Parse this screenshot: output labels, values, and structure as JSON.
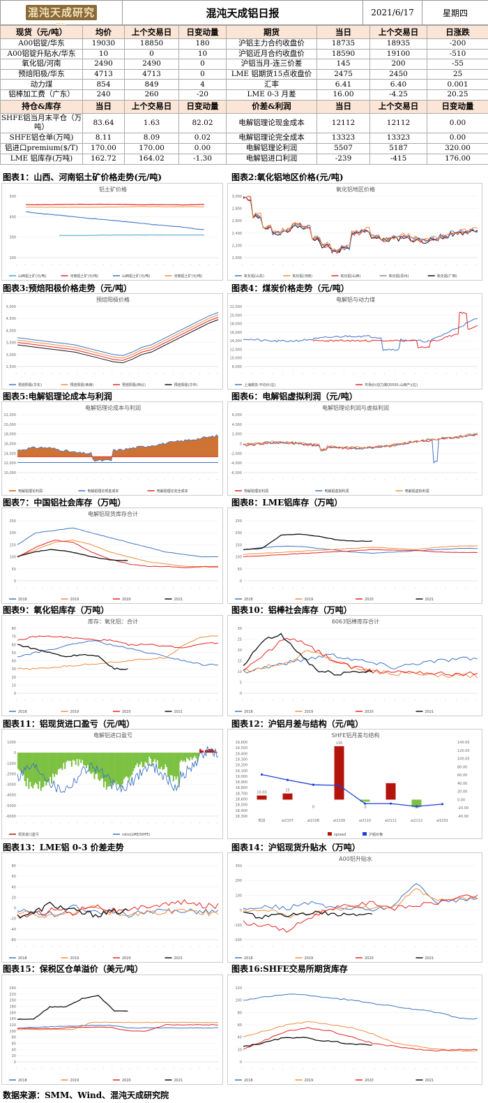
{
  "header": {
    "logo_text": "混沌天成研究院",
    "title": "混沌天成铝日报",
    "date": "2021/6/17",
    "weekday": "星期四"
  },
  "spot_table": {
    "headers_left": [
      "现货（元/吨）",
      "均价",
      "上个交易日",
      "日变动量"
    ],
    "headers_right": [
      "期货",
      "当日",
      "上个交易日",
      "日涨跌"
    ],
    "rows": [
      {
        "l": [
          "A00铝锭/华东",
          "19030",
          "18850",
          "180"
        ],
        "r": [
          "沪铝主力合约收盘价",
          "18735",
          "18935",
          "-200"
        ]
      },
      {
        "l": [
          "A00铝锭升贴水/华东",
          "10",
          "0",
          "10"
        ],
        "r": [
          "沪铝近月合约收盘价",
          "18590",
          "19100",
          "-510"
        ]
      },
      {
        "l": [
          "氧化铝/河南",
          "2490",
          "2490",
          "0"
        ],
        "r": [
          "沪铝当月-连三价差",
          "145",
          "200",
          "-55"
        ]
      },
      {
        "l": [
          "预焙阳极/华东",
          "4713",
          "4713",
          "0"
        ],
        "r": [
          "LME 铝期货15点收盘价",
          "2475",
          "2450",
          "25"
        ]
      },
      {
        "l": [
          "动力煤",
          "854",
          "849",
          "4"
        ],
        "r": [
          "汇率",
          "6.41",
          "6.40",
          "0.001"
        ]
      },
      {
        "l": [
          "铝棒加工费（广东）",
          "240",
          "260",
          "-20"
        ],
        "r": [
          "LME 0-3 月差",
          "16.00",
          "-4.25",
          "20.25"
        ]
      }
    ]
  },
  "inv_table": {
    "headers_left": [
      "持仓&库存",
      "当日",
      "上个交易日",
      "日变动量"
    ],
    "headers_right": [
      "价差&利润",
      "当日",
      "上个交易日",
      "日变动量"
    ],
    "rows": [
      {
        "l": [
          "SHFE铝当月末平仓（万吨）",
          "83.64",
          "1.63",
          "82.02"
        ],
        "r": [
          "电解铝理论现金成本",
          "12112",
          "12112",
          "0.00"
        ]
      },
      {
        "l": [
          "SHFE铝仓单(万吨)",
          "8.11",
          "8.09",
          "0.02"
        ],
        "r": [
          "电解铝理论完全成本",
          "13323",
          "13323",
          "0.00"
        ]
      },
      {
        "l": [
          "铝进口premium($/T)",
          "170.00",
          "170.00",
          "0.00"
        ],
        "r": [
          "电解铝理论利润",
          "5507",
          "5187",
          "320.00"
        ]
      },
      {
        "l": [
          "LME 铝库存(万吨)",
          "162.72",
          "164.02",
          "-1.30"
        ],
        "r": [
          "电解铝进口利润",
          "-239",
          "-415",
          "176.00"
        ]
      }
    ]
  },
  "sections": [
    {
      "label": "图表1：山西、河南铝土矿价格走势(元/吨)",
      "chart_title": "铝土矿价格",
      "legend": [
        "山西铝土矿(元/吨)",
        "河南铝土矿(元/吨)",
        "山西铝土矿(元/吨)",
        "河南铝土矿(元/吨)"
      ]
    },
    {
      "label": "图表2:氧化铝地区价格(元/吨)",
      "chart_title": "氧化铝地区价格",
      "legend": [
        "氧化铝(山东)",
        "氧化铝(河南)",
        "氧化铝(山西)",
        "氧化铝(贵州)",
        "氧化铝(广西)"
      ]
    },
    {
      "label": "图表3:预焙阳极价格走势（元/吨）",
      "chart_title": "预焙阳极价格",
      "legend": [
        "预焙阳极(华东)",
        "预焙阳极(西南)",
        "预焙阳极(西北)",
        "预焙阳极(华中)"
      ]
    },
    {
      "label": "图表4：煤炭价格走势（元/吨）",
      "chart_title": "电解铝与动力煤",
      "legend": [
        "上海期货:平均价(右)",
        "市场价(动力煤Q5500,山西产)(右)"
      ]
    },
    {
      "label": "图表5:电解铝理论成本与利润",
      "chart_title": "电解铝理论成本与利润",
      "legend": [
        "电解铝理论利润",
        "电解铝理论现金成本",
        "电解铝理论完全成本"
      ]
    },
    {
      "label": "图表6：电解铝虚拟利润（元/吨）",
      "chart_title": "电解铝理论利润与虚拟利润",
      "legend": [
        "电解铝理论利润",
        "电解铝虚拟利润",
        "电解铝虚拟利润"
      ]
    },
    {
      "label": "图表7：中国铝社会库存（万吨）",
      "chart_title": "电解铝现货库存合计",
      "legend": [
        "2018",
        "2019",
        "2020",
        "2021"
      ]
    },
    {
      "label": "图表8：LME铝库存（万吨）",
      "chart_title": "",
      "legend": [
        "2018",
        "2019",
        "2020",
        "2021"
      ]
    },
    {
      "label": "图表9：氧化铝库存（万吨）",
      "chart_title": "库存：氧化铝：合计",
      "legend": [
        "2018",
        "2019",
        "2020",
        "2021"
      ]
    },
    {
      "label": "图表10：铝棒社会库存（万吨）",
      "chart_title": "6063铝棒库存合计",
      "legend": [
        "2018",
        "2019",
        "2020",
        "2021"
      ]
    },
    {
      "label": "图表11：铝现货进口盈亏（元/吨）",
      "chart_title": "电解铝进口盈亏",
      "legend": [
        "现货进口盈亏",
        "ratio(LME/SHFE)"
      ]
    },
    {
      "label": "图表12：沪铝月差与结构（元/吨）",
      "chart_title": "SHFE铝月差与结构",
      "legend": [
        "spread",
        "沪铝价格"
      ]
    },
    {
      "label": "图表13：LME铝 0-3 价差走势",
      "chart_title": "",
      "legend": [
        "2018",
        "2019",
        "2020",
        "2021"
      ]
    },
    {
      "label": "图表14：沪铝现货升贴水（万吨）",
      "chart_title": "A00铝升贴水",
      "legend": [
        "2018",
        "2019",
        "2020",
        "2021"
      ]
    },
    {
      "label": "图表15：保税区仓单溢价（美元/吨）",
      "chart_title": "",
      "legend": [
        "2018",
        "2019",
        "2020",
        "2021"
      ]
    },
    {
      "label": "图表16:SHFE交易所期货库存",
      "chart_title": "",
      "legend": [
        "2018",
        "2019",
        "2020",
        "2021"
      ]
    }
  ],
  "chart12_data": {
    "type": "bar",
    "categories": [
      "现货",
      "al2107",
      "al2108",
      "al2109",
      "al2110",
      "al2111",
      "al2112",
      "al2201"
    ],
    "spread": [
      10,
      15,
      0,
      130,
      -5,
      40,
      -18,
      null
    ],
    "spread_labels": [
      "10.00",
      "15",
      "0",
      "130",
      "-5",
      "",
      "-18",
      ""
    ],
    "price": [
      19030,
      18935,
      18850,
      18840,
      18520,
      18520,
      18470,
      18510
    ]
  },
  "colors": {
    "y2018": "#3f73c4",
    "y2019": "#f08c3c",
    "y2020": "#e52222",
    "y2021": "#111111",
    "bar_red": "#b3140c",
    "bar_green": "#7cc142",
    "header_pink": "#fbe5d6"
  },
  "footer": "数据来源：SMM、Wind、混沌天成研究院"
}
